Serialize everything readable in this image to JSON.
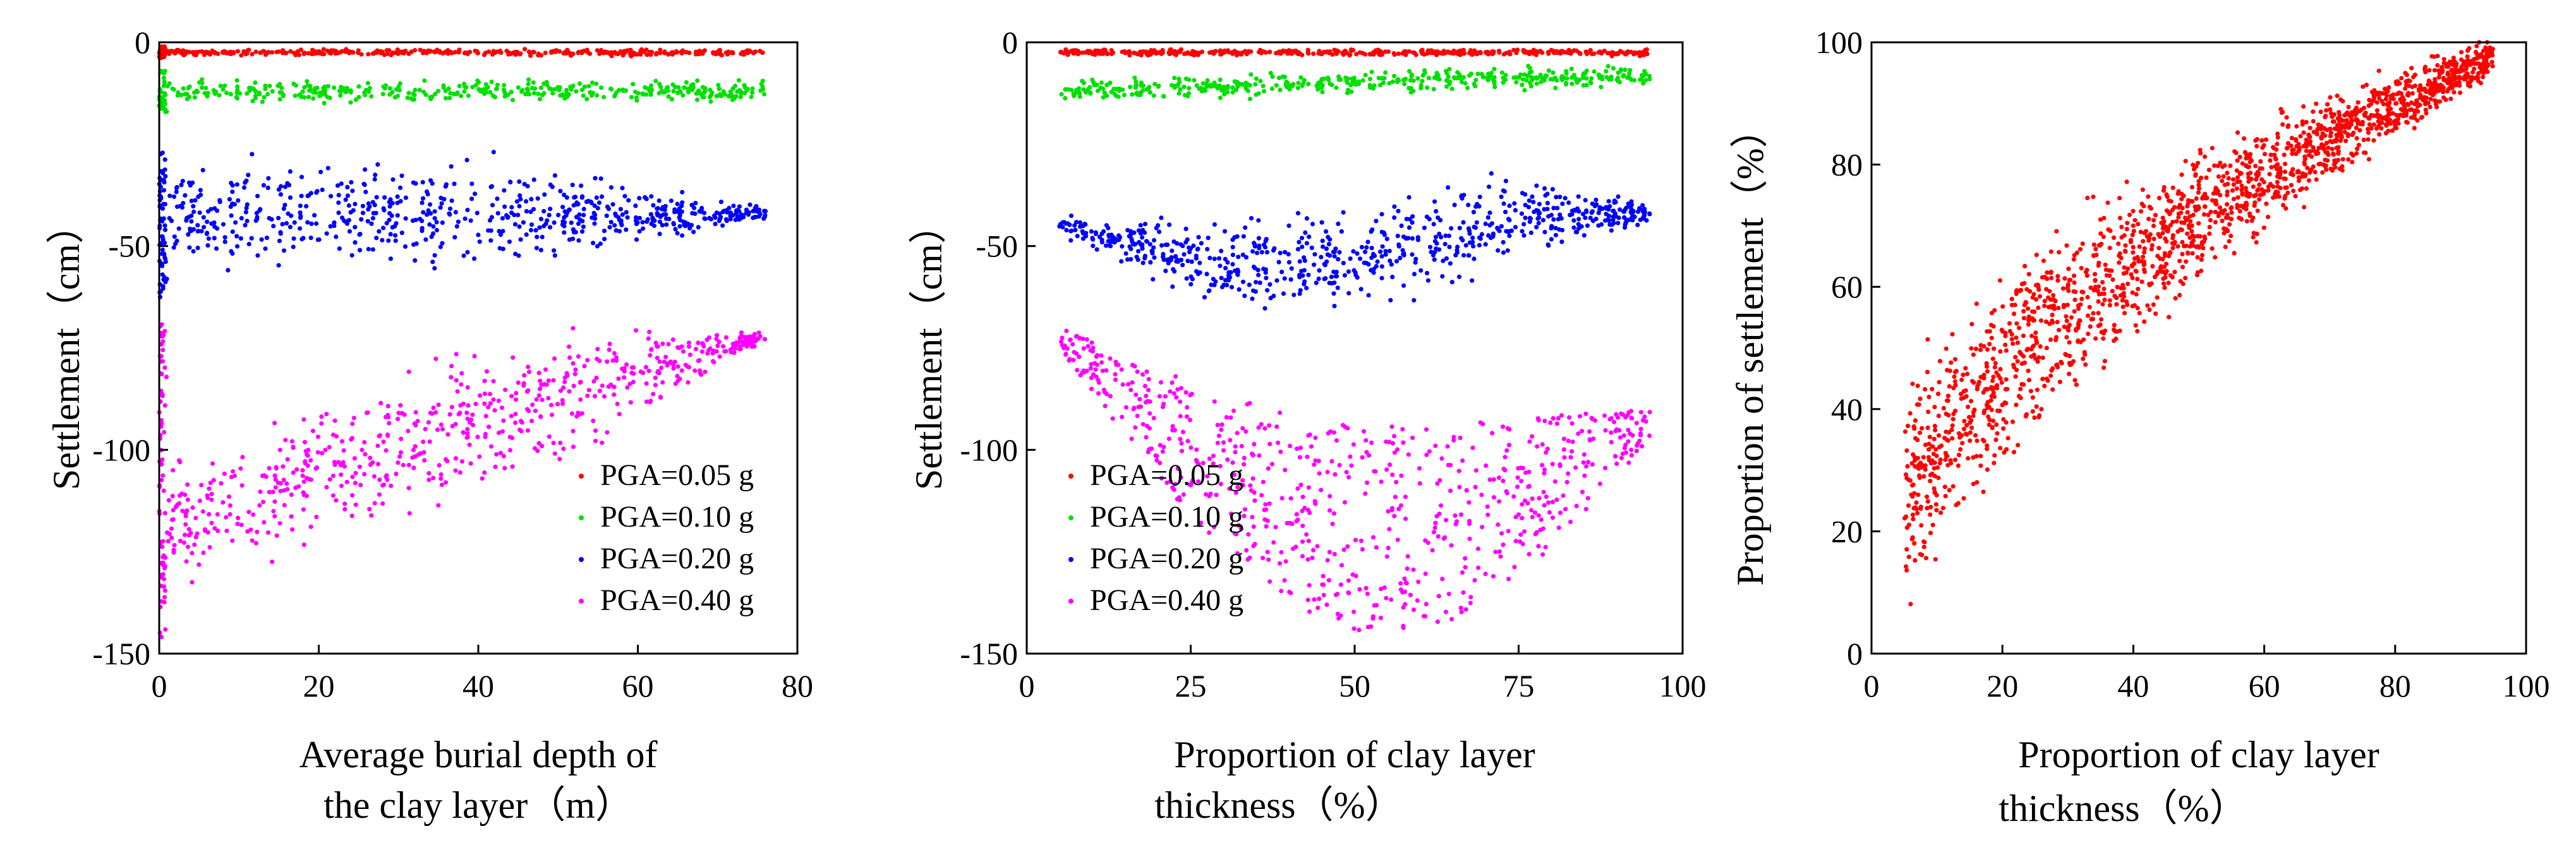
{
  "chart_data": [
    {
      "type": "scatter",
      "xlabel": "Average burial depth of the clay layer（m）",
      "xlabel_lines": [
        "Average burial depth of",
        "the clay layer（m）"
      ],
      "ylabel": "Settlement（cm）",
      "xlim": [
        0,
        80
      ],
      "ylim": [
        -150,
        0
      ],
      "xticks": [
        "0",
        "20",
        "40",
        "60",
        "80"
      ],
      "yticks": [
        "0",
        "-50",
        "-100",
        "-150"
      ],
      "legend": {
        "position": "bottom-right",
        "entries": [
          "PGA=0.05 g",
          "PGA=0.10 g",
          "PGA=0.20 g",
          "PGA=0.40 g"
        ]
      },
      "series": [
        {
          "name": "PGA=0.05 g",
          "color": "#ff0000",
          "x_range": [
            0,
            76
          ],
          "y_range": [
            -4,
            -1
          ]
        },
        {
          "name": "PGA=0.10 g",
          "color": "#00e000",
          "x_range": [
            0,
            76
          ],
          "y_range": [
            -18,
            -7
          ]
        },
        {
          "name": "PGA=0.20 g",
          "color": "#0000ff",
          "x_range": [
            0,
            76
          ],
          "y_range": [
            -65,
            -27
          ]
        },
        {
          "name": "PGA=0.40 g",
          "color": "#ff00ff",
          "x_range": [
            0,
            76
          ],
          "y_range": [
            -146,
            -68
          ]
        }
      ]
    },
    {
      "type": "scatter",
      "xlabel": "Proportion of clay layer thickness（%）",
      "xlabel_lines": [
        "Proportion of clay layer",
        "thickness（%）"
      ],
      "ylabel": "Settlement（cm）",
      "xlim": [
        0,
        100
      ],
      "ylim": [
        -150,
        0
      ],
      "xticks": [
        "0",
        "25",
        "50",
        "75",
        "100"
      ],
      "yticks": [
        "0",
        "-50",
        "-100",
        "-150"
      ],
      "legend": {
        "position": "bottom-left",
        "entries": [
          "PGA=0.05 g",
          "PGA=0.10 g",
          "PGA=0.20 g",
          "PGA=0.40 g"
        ]
      },
      "series": [
        {
          "name": "PGA=0.05 g",
          "color": "#ff0000",
          "x_range": [
            5,
            95
          ],
          "y_range": [
            -4,
            -1
          ]
        },
        {
          "name": "PGA=0.10 g",
          "color": "#00e000",
          "x_range": [
            5,
            95
          ],
          "y_range": [
            -18,
            -7
          ]
        },
        {
          "name": "PGA=0.20 g",
          "color": "#0000ff",
          "x_range": [
            5,
            95
          ],
          "y_range": [
            -65,
            -27
          ]
        },
        {
          "name": "PGA=0.40 g",
          "color": "#ff00ff",
          "x_range": [
            5,
            95
          ],
          "y_range": [
            -146,
            -68
          ]
        }
      ]
    },
    {
      "type": "scatter",
      "xlabel": "Proportion of clay layer thickness（%）",
      "xlabel_lines": [
        "Proportion of clay layer",
        "thickness（%）"
      ],
      "ylabel": "Proportion of settlement（%）",
      "xlim": [
        0,
        100
      ],
      "ylim": [
        0,
        100
      ],
      "xticks": [
        "0",
        "20",
        "40",
        "60",
        "80",
        "100"
      ],
      "yticks": [
        "0",
        "20",
        "40",
        "60",
        "80",
        "100"
      ],
      "series": [
        {
          "name": "",
          "color": "#ff0000",
          "x_range": [
            5,
            95
          ],
          "y_range": [
            13,
            100
          ]
        }
      ]
    }
  ]
}
